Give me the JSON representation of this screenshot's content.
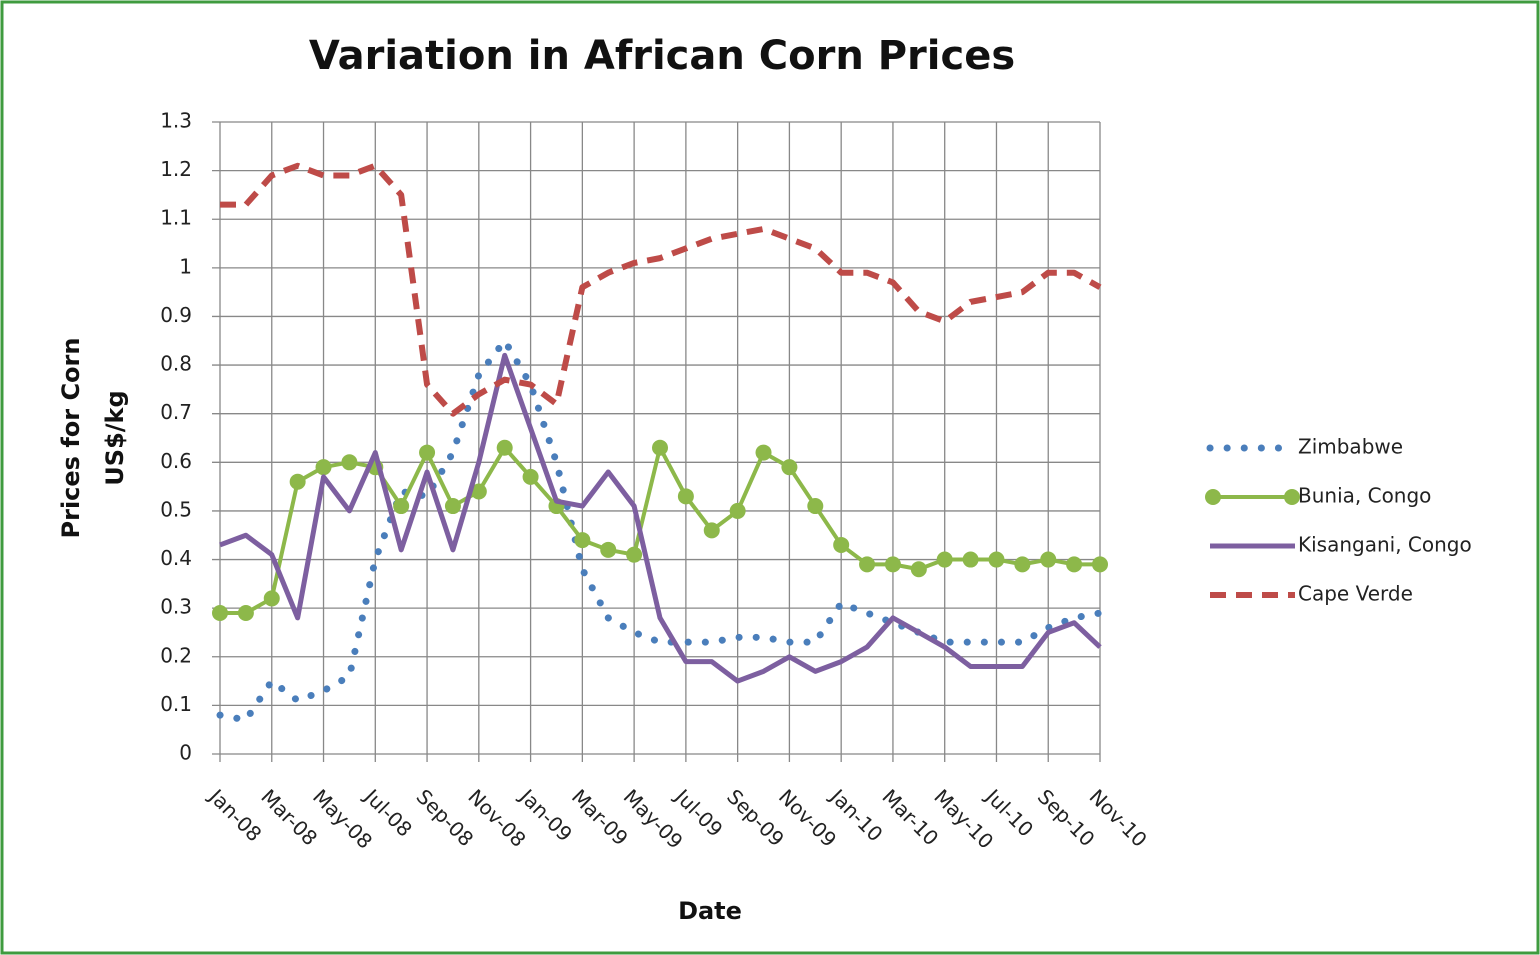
{
  "chart_data": {
    "type": "line",
    "title": "Variation in African Corn Prices",
    "x_label": "Date",
    "y_label": [
      "Prices for Corn",
      "US$/kg"
    ],
    "categories": [
      "Jan-08",
      null,
      "Mar-08",
      null,
      "May-08",
      null,
      "Jul-08",
      null,
      "Sep-08",
      null,
      "Nov-08",
      null,
      "Jan-09",
      null,
      "Mar-09",
      null,
      "May-09",
      null,
      "Jul-09",
      null,
      "Sep-09",
      null,
      "Nov-09",
      null,
      "Jan-10",
      null,
      "Mar-10",
      null,
      "May-10",
      null,
      "Jul-10",
      null,
      "Sep-10",
      null,
      "Nov-10"
    ],
    "ylim": [
      0,
      1.3
    ],
    "yticks": [
      0,
      0.1,
      0.2,
      0.3,
      0.4,
      0.5,
      0.6,
      0.7,
      0.8,
      0.9,
      1,
      1.1,
      1.2,
      1.3
    ],
    "grid": true,
    "legend": "right",
    "series": [
      {
        "name": "Zimbabwe",
        "color": "#4a7ebb",
        "style": "dotted",
        "values": [
          0.08,
          0.07,
          0.15,
          0.11,
          0.13,
          0.16,
          0.4,
          0.54,
          0.53,
          0.62,
          0.78,
          0.85,
          0.76,
          0.6,
          0.38,
          0.28,
          0.25,
          0.23,
          0.23,
          0.23,
          0.24,
          0.24,
          0.23,
          0.23,
          0.31,
          0.29,
          0.27,
          0.25,
          0.23,
          0.23,
          0.23,
          0.23,
          0.26,
          0.28,
          0.29
        ]
      },
      {
        "name": "Bunia, Congo",
        "color": "#8db84a",
        "style": "markers",
        "values": [
          0.29,
          0.29,
          0.32,
          0.56,
          0.59,
          0.6,
          0.59,
          0.51,
          0.62,
          0.51,
          0.54,
          0.63,
          0.57,
          0.51,
          0.44,
          0.42,
          0.41,
          0.63,
          0.53,
          0.46,
          0.5,
          0.62,
          0.59,
          0.51,
          0.43,
          0.39,
          0.39,
          0.38,
          0.4,
          0.4,
          0.4,
          0.39,
          0.4,
          0.39,
          0.39
        ]
      },
      {
        "name": "Kisangani, Congo",
        "color": "#7d5fa0",
        "style": "solid",
        "values": [
          0.43,
          0.45,
          0.41,
          0.28,
          0.57,
          0.5,
          0.62,
          0.42,
          0.58,
          0.42,
          0.6,
          0.82,
          0.67,
          0.52,
          0.51,
          0.58,
          0.51,
          0.28,
          0.19,
          0.19,
          0.15,
          0.17,
          0.2,
          0.17,
          0.19,
          0.22,
          0.28,
          0.25,
          0.22,
          0.18,
          0.18,
          0.18,
          0.25,
          0.27,
          0.22
        ]
      },
      {
        "name": "Cape Verde",
        "color": "#be4b48",
        "style": "dashed",
        "values": [
          1.13,
          1.13,
          1.19,
          1.21,
          1.19,
          1.19,
          1.21,
          1.15,
          0.76,
          0.7,
          0.74,
          0.77,
          0.76,
          0.72,
          0.96,
          0.99,
          1.01,
          1.02,
          1.04,
          1.06,
          1.07,
          1.08,
          1.06,
          1.04,
          0.99,
          0.99,
          0.97,
          0.91,
          0.89,
          0.93,
          0.94,
          0.95,
          0.99,
          0.99,
          0.96
        ]
      }
    ]
  }
}
